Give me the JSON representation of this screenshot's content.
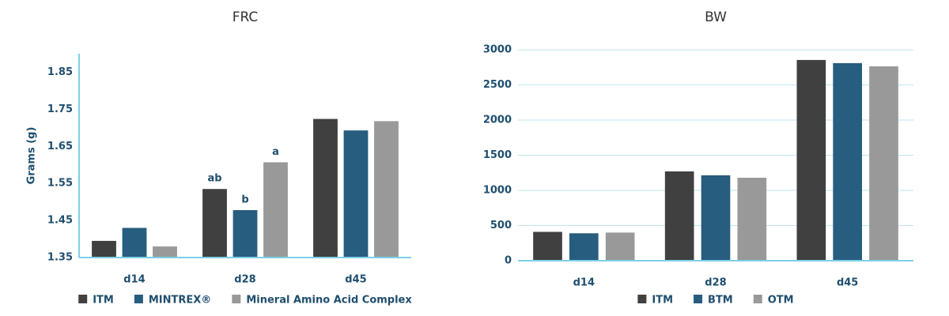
{
  "chart_data": [
    {
      "type": "bar",
      "title": "FRC",
      "y_label": "Grams (g)",
      "categories": [
        "d14",
        "d28",
        "d45"
      ],
      "series": [
        {
          "name": "ITM",
          "color": "#404040",
          "values": [
            1.395,
            1.535,
            1.724
          ],
          "letters": [
            null,
            "ab",
            null
          ]
        },
        {
          "name": "MINTREX®",
          "color": "#275d7e",
          "values": [
            1.43,
            1.478,
            1.693
          ],
          "letters": [
            null,
            "b",
            null
          ]
        },
        {
          "name": "Mineral Amino Acid Complex",
          "color": "#999999",
          "values": [
            1.38,
            1.607,
            1.718
          ],
          "letters": [
            null,
            "a",
            null
          ]
        }
      ],
      "ylim": [
        1.35,
        1.9
      ],
      "yticks": [
        1.35,
        1.45,
        1.55,
        1.65,
        1.75,
        1.85
      ],
      "grid": false,
      "legend": "bottom"
    },
    {
      "type": "bar",
      "title": "BW",
      "categories": [
        "d14",
        "d28",
        "d45"
      ],
      "series": [
        {
          "name": "ITM",
          "color": "#404040",
          "values": [
            410,
            1270,
            2855
          ]
        },
        {
          "name": "BTM",
          "color": "#275d7e",
          "values": [
            390,
            1215,
            2810
          ]
        },
        {
          "name": "OTM",
          "color": "#999999",
          "values": [
            400,
            1180,
            2765
          ]
        }
      ],
      "ylim": [
        0,
        3000
      ],
      "yticks": [
        0,
        500,
        1000,
        1500,
        2000,
        2500,
        3000
      ],
      "grid": true,
      "legend": "bottom"
    }
  ]
}
